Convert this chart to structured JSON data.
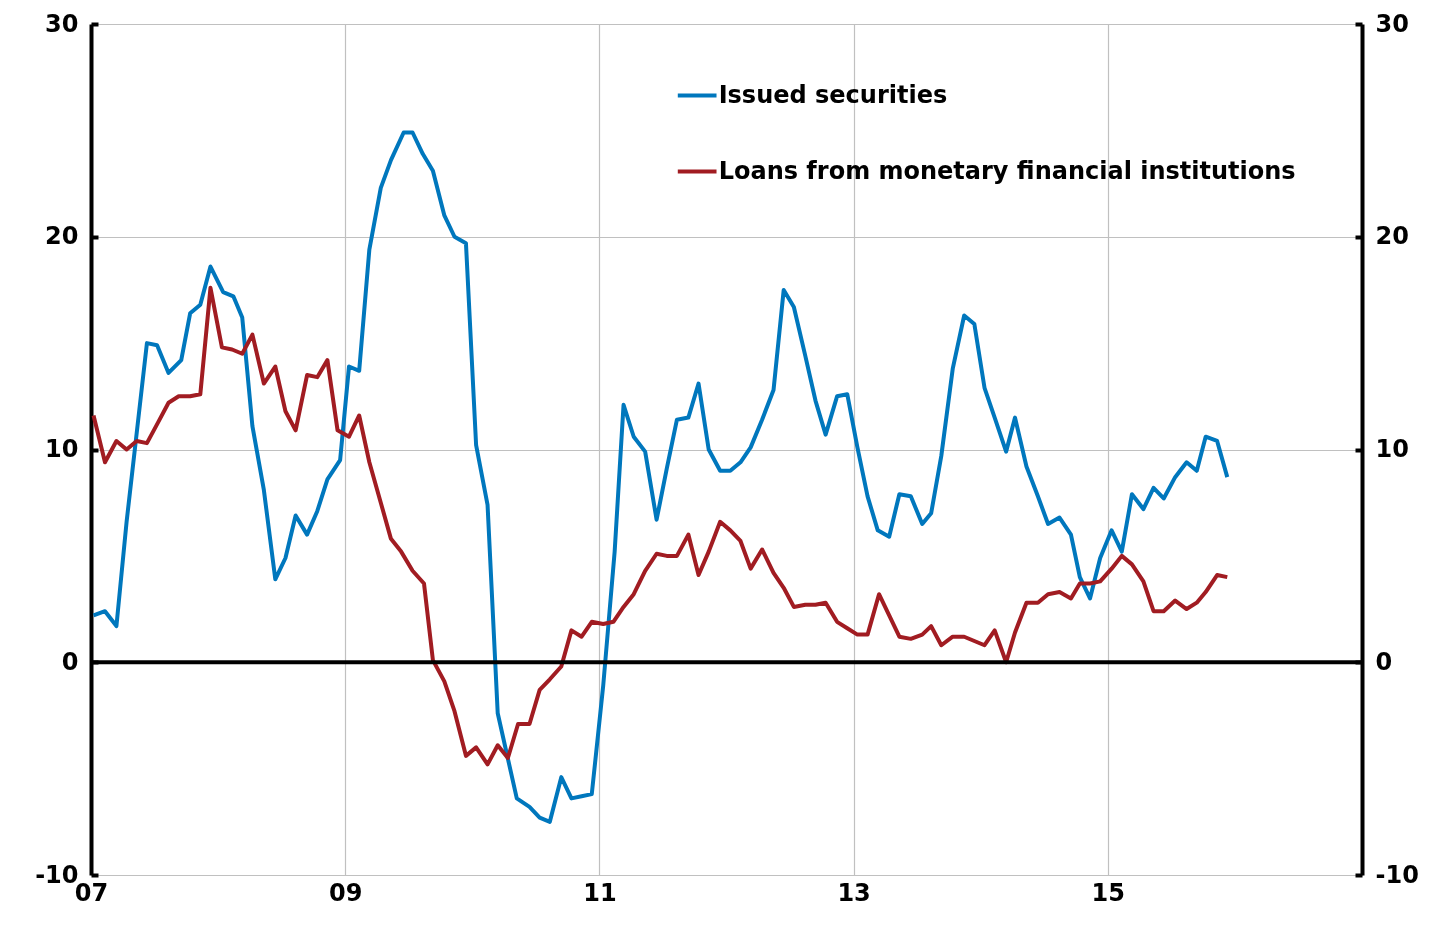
{
  "chart_data": {
    "type": "line",
    "series": [
      {
        "name": "Issued securities",
        "color": "#0077bd",
        "x": [
          2007.02,
          2007.11,
          2007.2,
          2007.28,
          2007.44,
          2007.52,
          2007.61,
          2007.71,
          2007.78,
          2007.86,
          2007.94,
          2008.04,
          2008.12,
          2008.19,
          2008.27,
          2008.36,
          2008.45,
          2008.53,
          2008.61,
          2008.7,
          2008.78,
          2008.86,
          2008.96,
          2009.03,
          2009.11,
          2009.19,
          2009.28,
          2009.36,
          2009.46,
          2009.53,
          2009.61,
          2009.69,
          2009.78,
          2009.86,
          2009.95,
          2010.03,
          2010.12,
          2010.2,
          2010.35,
          2010.45,
          2010.53,
          2010.61,
          2010.7,
          2010.78,
          2010.86,
          2010.94,
          2011.03,
          2011.12,
          2011.19,
          2011.27,
          2011.36,
          2011.45,
          2011.53,
          2011.61,
          2011.7,
          2011.78,
          2011.86,
          2011.95,
          2012.03,
          2012.11,
          2012.19,
          2012.28,
          2012.37,
          2012.45,
          2012.53,
          2012.62,
          2012.7,
          2012.78,
          2012.87,
          2012.95,
          2013.03,
          2013.11,
          2013.19,
          2013.28,
          2013.36,
          2013.45,
          2013.54,
          2013.61,
          2013.69,
          2013.78,
          2013.87,
          2013.95,
          2014.03,
          2014.11,
          2014.2,
          2014.27,
          2014.36,
          2014.45,
          2014.53,
          2014.62,
          2014.71,
          2014.78,
          2014.86,
          2014.94,
          2015.03,
          2015.11,
          2015.19,
          2015.28,
          2015.36,
          2015.44,
          2015.53,
          2015.62,
          2015.7,
          2015.77,
          2015.86,
          2015.94
        ],
        "values": [
          2.2,
          2.4,
          1.7,
          6.6,
          15.0,
          14.9,
          13.6,
          14.2,
          16.4,
          16.8,
          18.6,
          17.4,
          17.2,
          16.2,
          11.1,
          8.1,
          3.9,
          4.9,
          6.9,
          6.0,
          7.1,
          8.6,
          9.5,
          13.9,
          13.7,
          19.4,
          22.3,
          23.6,
          24.9,
          24.9,
          23.9,
          23.1,
          21.0,
          20.0,
          19.7,
          10.2,
          7.4,
          -2.4,
          -6.4,
          -6.8,
          -7.3,
          -7.5,
          -5.4,
          -6.4,
          -6.3,
          -6.2,
          -1.1,
          5.2,
          12.1,
          10.6,
          9.9,
          6.7,
          9.1,
          11.4,
          11.5,
          13.1,
          10.0,
          9.0,
          9.0,
          9.4,
          10.1,
          11.4,
          12.8,
          17.5,
          16.7,
          14.4,
          12.3,
          10.7,
          12.5,
          12.6,
          10.1,
          7.8,
          6.2,
          5.9,
          7.9,
          7.8,
          6.5,
          7.0,
          9.7,
          13.8,
          16.3,
          15.9,
          12.9,
          11.5,
          9.9,
          11.5,
          9.2,
          7.8,
          6.5,
          6.8,
          6.0,
          4.0,
          3.0,
          4.9,
          6.2,
          5.2,
          7.9,
          7.2,
          8.2,
          7.7,
          8.7,
          9.4,
          9.0,
          10.6,
          10.4,
          8.7
        ]
      },
      {
        "name": "Loans from monetary financial institutions",
        "color": "#a11c22",
        "x": [
          2007.02,
          2007.11,
          2007.2,
          2007.28,
          2007.36,
          2007.44,
          2007.53,
          2007.61,
          2007.69,
          2007.78,
          2007.86,
          2007.94,
          2008.03,
          2008.11,
          2008.19,
          2008.27,
          2008.36,
          2008.45,
          2008.53,
          2008.61,
          2008.7,
          2008.78,
          2008.86,
          2008.94,
          2009.03,
          2009.11,
          2009.19,
          2009.28,
          2009.36,
          2009.44,
          2009.53,
          2009.62,
          2009.69,
          2009.78,
          2009.86,
          2009.95,
          2010.03,
          2010.12,
          2010.2,
          2010.28,
          2010.36,
          2010.45,
          2010.53,
          2010.61,
          2010.7,
          2010.78,
          2010.86,
          2010.94,
          2011.03,
          2011.11,
          2011.19,
          2011.27,
          2011.36,
          2011.45,
          2011.53,
          2011.61,
          2011.7,
          2011.78,
          2011.86,
          2011.95,
          2012.03,
          2012.11,
          2012.19,
          2012.28,
          2012.37,
          2012.45,
          2012.53,
          2012.62,
          2012.7,
          2012.78,
          2012.87,
          2012.95,
          2013.03,
          2013.11,
          2013.2,
          2013.28,
          2013.36,
          2013.45,
          2013.54,
          2013.61,
          2013.69,
          2013.78,
          2013.87,
          2013.95,
          2014.03,
          2014.11,
          2014.2,
          2014.27,
          2014.36,
          2014.45,
          2014.53,
          2014.62,
          2014.71,
          2014.78,
          2014.86,
          2014.94,
          2015.03,
          2015.11,
          2015.19,
          2015.28,
          2015.36,
          2015.44,
          2015.53,
          2015.62,
          2015.7,
          2015.77,
          2015.86,
          2015.94
        ],
        "values": [
          11.6,
          9.4,
          10.4,
          10.0,
          10.4,
          10.3,
          11.3,
          12.2,
          12.5,
          12.5,
          12.6,
          17.6,
          14.8,
          14.7,
          14.5,
          15.4,
          13.1,
          13.9,
          11.8,
          10.9,
          13.5,
          13.4,
          14.2,
          10.9,
          10.6,
          11.6,
          9.4,
          7.5,
          5.8,
          5.2,
          4.3,
          3.7,
          0.1,
          -0.9,
          -2.3,
          -4.4,
          -4.0,
          -4.8,
          -3.9,
          -4.5,
          -2.9,
          -2.9,
          -1.3,
          -0.8,
          -0.2,
          1.5,
          1.2,
          1.9,
          1.8,
          1.9,
          2.6,
          3.2,
          4.3,
          5.1,
          5.0,
          5.0,
          6.0,
          4.1,
          5.2,
          6.6,
          6.2,
          5.7,
          4.4,
          5.3,
          4.2,
          3.5,
          2.6,
          2.7,
          2.7,
          2.8,
          1.9,
          1.6,
          1.3,
          1.3,
          3.2,
          2.2,
          1.2,
          1.1,
          1.3,
          1.7,
          0.8,
          1.2,
          1.2,
          1.0,
          0.8,
          1.5,
          0.0,
          1.4,
          2.8,
          2.8,
          3.2,
          3.3,
          3.0,
          3.7,
          3.7,
          3.8,
          4.4,
          5.0,
          4.6,
          3.8,
          2.4,
          2.4,
          2.9,
          2.5,
          2.8,
          3.3,
          4.1,
          4.0
        ]
      }
    ],
    "xlim": [
      2007,
      2017
    ],
    "xticks": [
      {
        "value": 2007,
        "label": "07"
      },
      {
        "value": 2009,
        "label": "09"
      },
      {
        "value": 2011,
        "label": "11"
      },
      {
        "value": 2013,
        "label": "13"
      },
      {
        "value": 2015,
        "label": "15"
      }
    ],
    "ylim": [
      -10,
      30
    ],
    "yticks": [
      -10,
      0,
      10,
      20,
      30
    ],
    "y2lim": [
      -10,
      30
    ],
    "y2ticks": [
      -10,
      0,
      10,
      20,
      30
    ],
    "ref_lines": [
      {
        "axis": "y",
        "value": 0,
        "color": "#000000"
      }
    ],
    "grid": true,
    "legend": "top right",
    "marker": "none",
    "line_style": "solid"
  }
}
